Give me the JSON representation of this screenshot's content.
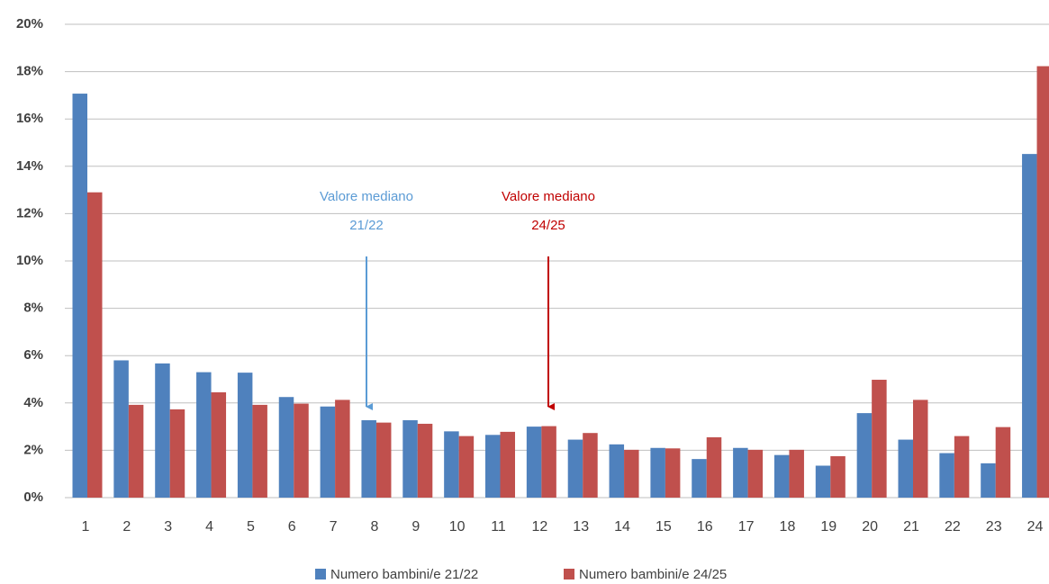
{
  "chart_data": {
    "type": "bar",
    "categories": [
      "1",
      "2",
      "3",
      "4",
      "5",
      "6",
      "7",
      "8",
      "9",
      "10",
      "11",
      "12",
      "13",
      "14",
      "15",
      "16",
      "17",
      "18",
      "19",
      "20",
      "21",
      "22",
      "23",
      "24"
    ],
    "series": [
      {
        "name": "Numero bambini/e 21/22",
        "color": "#4f81bd",
        "values": [
          17.07,
          5.8,
          5.67,
          5.3,
          5.28,
          4.25,
          3.85,
          3.27,
          3.27,
          2.8,
          2.65,
          3.0,
          2.45,
          2.25,
          2.1,
          1.63,
          2.1,
          1.8,
          1.35,
          3.57,
          2.45,
          1.88,
          1.45,
          14.52
        ]
      },
      {
        "name": "Numero bambini/e 24/25",
        "color": "#c0504d",
        "values": [
          12.9,
          3.92,
          3.73,
          4.45,
          3.92,
          3.97,
          4.13,
          3.17,
          3.12,
          2.6,
          2.78,
          3.02,
          2.73,
          2.02,
          2.08,
          2.55,
          2.02,
          2.02,
          1.75,
          4.98,
          4.13,
          2.6,
          2.98,
          18.23
        ]
      }
    ],
    "ylim": [
      0,
      20
    ],
    "yticks": [
      {
        "value": 0,
        "label": "0%"
      },
      {
        "value": 2,
        "label": "2%"
      },
      {
        "value": 4,
        "label": "4%"
      },
      {
        "value": 6,
        "label": "6%"
      },
      {
        "value": 8,
        "label": "8%"
      },
      {
        "value": 10,
        "label": "10%"
      },
      {
        "value": 12,
        "label": "12%"
      },
      {
        "value": 14,
        "label": "14%"
      },
      {
        "value": 16,
        "label": "16%"
      },
      {
        "value": 18,
        "label": "18%"
      },
      {
        "value": 20,
        "label": "20%"
      }
    ],
    "grid": true,
    "legend": "bottom",
    "annotations": [
      {
        "lines": [
          "Valore mediano",
          "21/22"
        ],
        "color": "#5b9bd5"
      },
      {
        "lines": [
          "Valore mediano",
          "24/25"
        ],
        "color": "#c00000"
      }
    ]
  }
}
